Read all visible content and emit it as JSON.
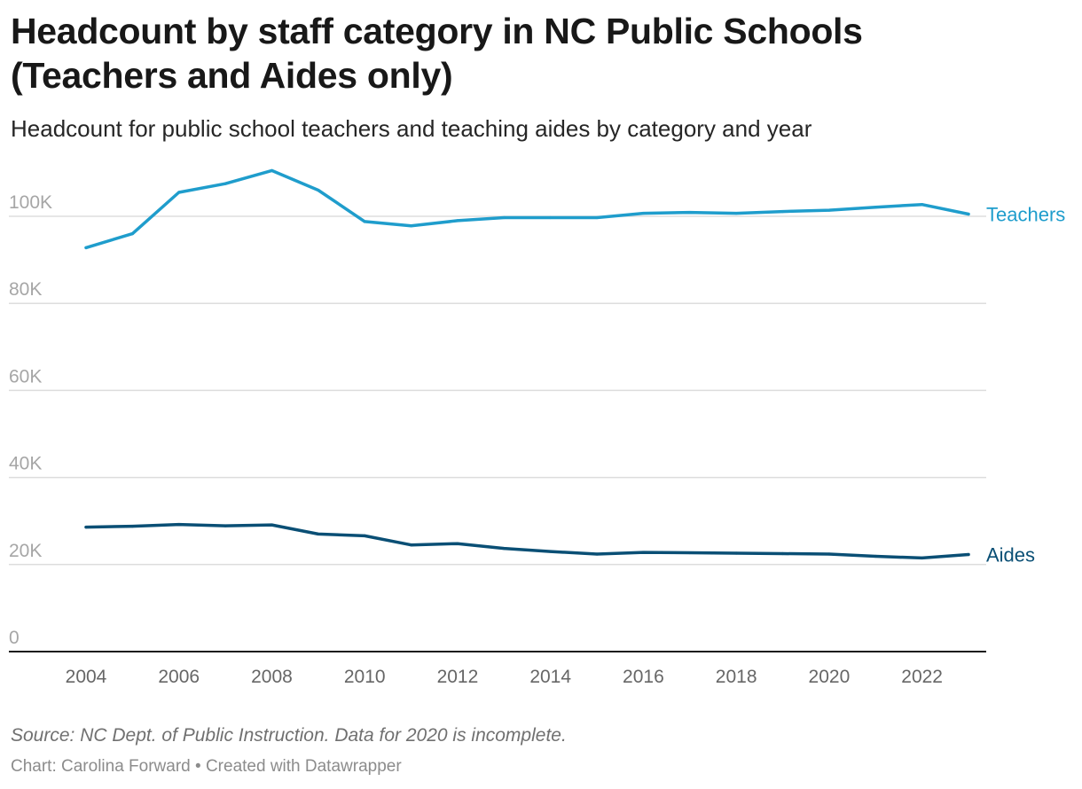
{
  "header": {
    "title_line1": "Headcount by staff category in NC Public Schools",
    "title_line2": "(Teachers and Aides only)",
    "subtitle": "Headcount for public school teachers and teaching aides by category and year"
  },
  "footer": {
    "notes": "Source: NC Dept. of Public Instruction. Data for 2020 is incomplete.",
    "byline": "Chart: Carolina Forward • Created with Datawrapper"
  },
  "chart_data": {
    "type": "line",
    "title": "Headcount by staff category in NC Public Schools (Teachers and Aides only)",
    "xlabel": "",
    "ylabel": "",
    "x": [
      2004,
      2005,
      2006,
      2007,
      2008,
      2009,
      2010,
      2011,
      2012,
      2013,
      2014,
      2015,
      2016,
      2017,
      2018,
      2019,
      2020,
      2021,
      2022,
      2023
    ],
    "x_ticks": [
      "2004",
      "2006",
      "2008",
      "2010",
      "2012",
      "2014",
      "2016",
      "2018",
      "2020",
      "2022"
    ],
    "ylim": [
      0,
      110000
    ],
    "y_ticks": [
      {
        "value": 0,
        "label": "0"
      },
      {
        "value": 20000,
        "label": "20K"
      },
      {
        "value": 40000,
        "label": "40K"
      },
      {
        "value": 60000,
        "label": "60K"
      },
      {
        "value": 80000,
        "label": "80K"
      },
      {
        "value": 100000,
        "label": "100K"
      }
    ],
    "grid": true,
    "legend": "inline labels at line ends",
    "series": [
      {
        "name": "Teachers",
        "color": "#1f9dcc",
        "values": [
          92800,
          96000,
          105500,
          107500,
          110500,
          106000,
          98800,
          97800,
          99000,
          99700,
          99700,
          99700,
          100700,
          100900,
          100700,
          101100,
          101400,
          102100,
          102700,
          100500
        ]
      },
      {
        "name": "Aides",
        "color": "#0a4f75",
        "values": [
          28600,
          28800,
          29200,
          28900,
          29100,
          27000,
          26600,
          24500,
          24800,
          23700,
          23000,
          22400,
          22800,
          22700,
          22600,
          22500,
          22400,
          21900,
          21500,
          22300
        ]
      }
    ]
  }
}
